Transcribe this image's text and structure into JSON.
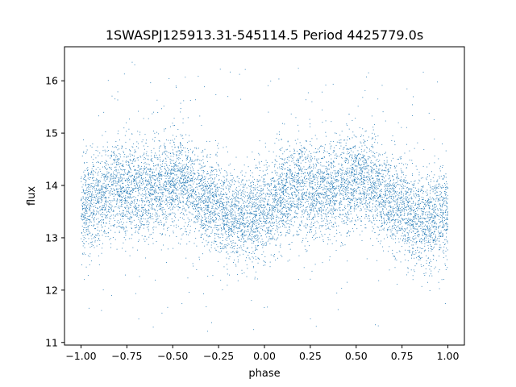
{
  "chart_data": {
    "type": "scatter",
    "title": "1SWASPJ125913.31-545114.5 Period 4425779.0s",
    "xlabel": "phase",
    "ylabel": "flux",
    "xlim": [
      -1.09,
      1.09
    ],
    "ylim": [
      10.95,
      16.65
    ],
    "x_ticks": [
      -1.0,
      -0.75,
      -0.5,
      -0.25,
      0.0,
      0.25,
      0.5,
      0.75,
      1.0
    ],
    "x_tick_labels": [
      "−1.00",
      "−0.75",
      "−0.50",
      "−0.25",
      "0.00",
      "0.25",
      "0.50",
      "0.75",
      "1.00"
    ],
    "y_ticks": [
      11,
      12,
      13,
      14,
      15,
      16
    ],
    "y_tick_labels": [
      "11",
      "12",
      "13",
      "14",
      "15",
      "16"
    ],
    "grid": false,
    "legend": "none",
    "marker_color": "#1f77b4",
    "series": [
      {
        "profile_phase": [
          -1.0,
          -0.95,
          -0.9,
          -0.85,
          -0.8,
          -0.75,
          -0.7,
          -0.65,
          -0.6,
          -0.55,
          -0.5,
          -0.45,
          -0.4,
          -0.35,
          -0.3,
          -0.25,
          -0.2,
          -0.15,
          -0.1,
          -0.05,
          0.0,
          0.05,
          0.1,
          0.15,
          0.2,
          0.25,
          0.3,
          0.35,
          0.4,
          0.45,
          0.5,
          0.55,
          0.6,
          0.65,
          0.7,
          0.75,
          0.8,
          0.85,
          0.9,
          0.95,
          1.0
        ],
        "profile_flux": [
          13.5,
          13.6,
          13.8,
          13.9,
          14.0,
          13.9,
          13.9,
          13.9,
          14.0,
          14.0,
          14.1,
          14.1,
          14.0,
          13.8,
          13.7,
          13.6,
          13.5,
          13.4,
          13.3,
          13.5,
          13.5,
          13.6,
          13.8,
          13.9,
          14.0,
          13.9,
          13.9,
          13.9,
          14.0,
          14.0,
          14.1,
          14.1,
          14.0,
          13.8,
          13.7,
          13.6,
          13.5,
          13.4,
          13.3,
          13.5,
          13.5
        ],
        "scatter_sigma": 0.45,
        "outlier_range": [
          11.2,
          16.4
        ],
        "point_count": 9000
      }
    ]
  }
}
